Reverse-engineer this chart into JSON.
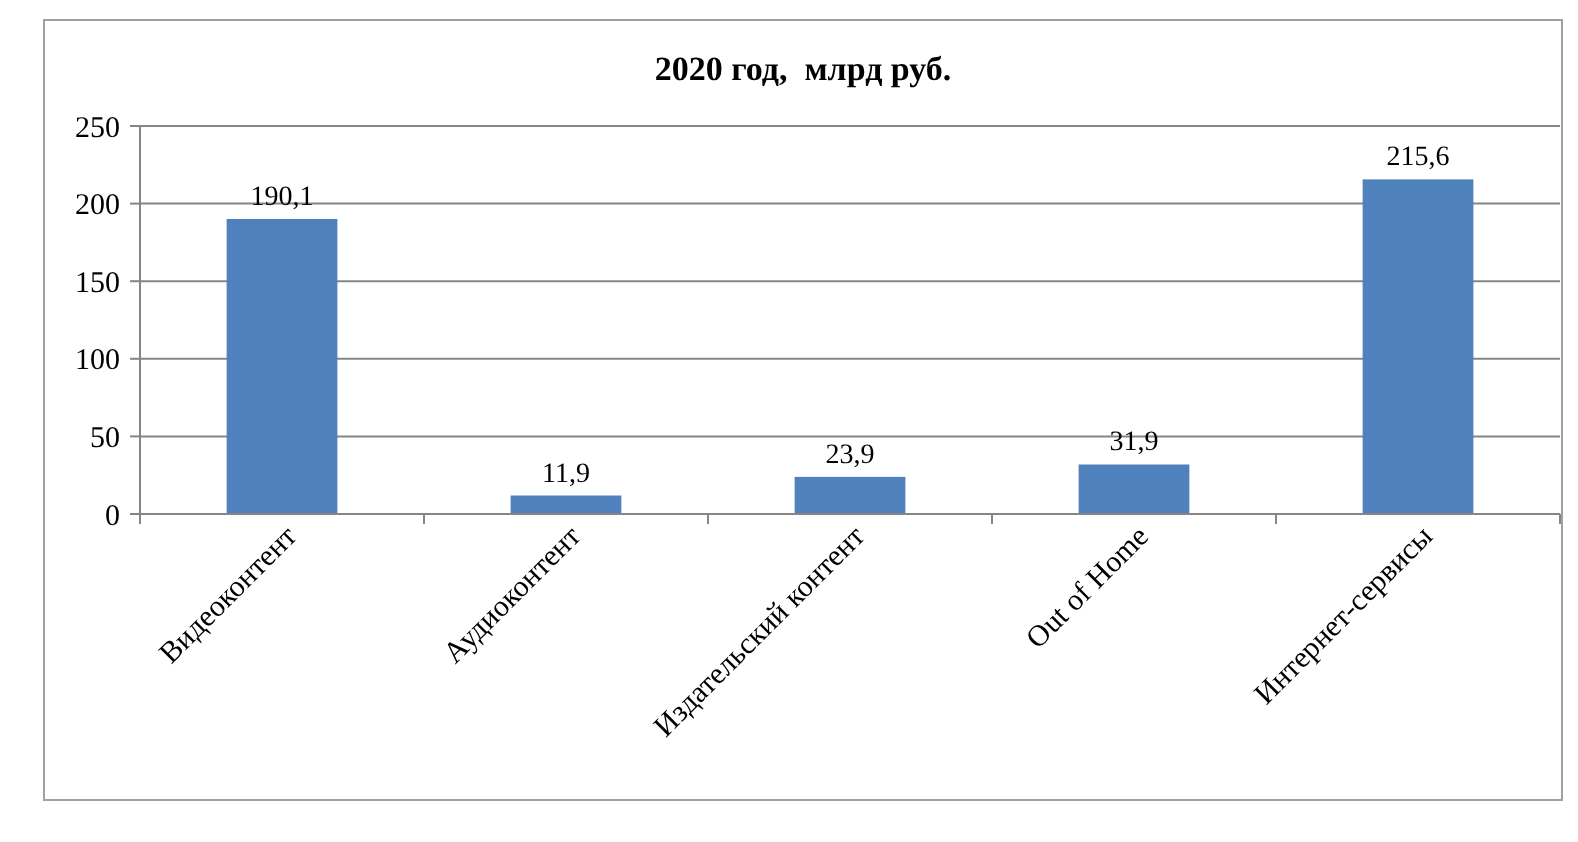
{
  "chart_data": {
    "type": "bar",
    "title": "2020 год,  млрд руб.",
    "categories": [
      "Видеоконтент",
      "Аудиоконтент",
      "Издательский контент",
      "Out of Home",
      "Интернет-сервисы"
    ],
    "values": [
      190.1,
      11.9,
      23.9,
      31.9,
      215.6
    ],
    "value_labels": [
      "190,1",
      "11,9",
      "23,9",
      "31,9",
      "215,6"
    ],
    "color": "#4f81bd",
    "ylim": [
      0,
      250
    ],
    "yticks": [
      0,
      50,
      100,
      150,
      200,
      250
    ],
    "grid": "y"
  }
}
